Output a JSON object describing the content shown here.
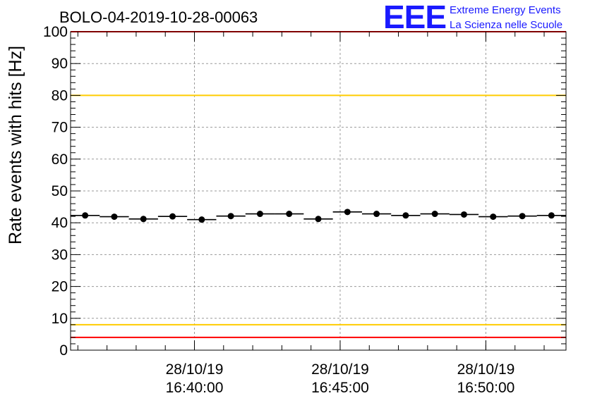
{
  "chart_data": {
    "type": "scatter",
    "title": "BOLO-04-2019-10-28-00063",
    "xlabel": "",
    "ylabel": "Rate events with hits [Hz]",
    "ylim": [
      0,
      100
    ],
    "yticks": [
      0,
      10,
      20,
      30,
      40,
      50,
      60,
      70,
      80,
      90,
      100
    ],
    "xlim_minutes": [
      0,
      17
    ],
    "x_tick_labels": [
      {
        "date": "28/10/19",
        "time": "16:40:00",
        "minute": 4.25
      },
      {
        "date": "28/10/19",
        "time": "16:45:00",
        "minute": 9.25
      },
      {
        "date": "28/10/19",
        "time": "16:50:00",
        "minute": 14.25
      }
    ],
    "series": [
      {
        "name": "rate",
        "x_minutes": [
          0.5,
          1.5,
          2.5,
          3.5,
          4.5,
          5.5,
          6.5,
          7.5,
          8.5,
          9.5,
          10.5,
          11.5,
          12.5,
          13.5,
          14.5,
          15.5,
          16.5
        ],
        "values": [
          42.3,
          41.9,
          41.2,
          42.0,
          41.0,
          42.1,
          42.8,
          42.8,
          41.2,
          43.4,
          42.8,
          42.3,
          42.8,
          42.6,
          41.9,
          42.1,
          42.3
        ]
      }
    ],
    "threshold_lines": [
      {
        "name": "upper-red",
        "value": 100,
        "color": "#ff0000"
      },
      {
        "name": "upper-yellow",
        "value": 80,
        "color": "#ffcc00"
      },
      {
        "name": "lower-yellow",
        "value": 8,
        "color": "#ffcc00"
      },
      {
        "name": "lower-red",
        "value": 4,
        "color": "#ff0000"
      }
    ],
    "grid": true
  },
  "logo": {
    "mark": "EEE",
    "line1": "Extreme Energy Events",
    "line2": "La Scienza nelle Scuole",
    "color": "#1a1aff"
  }
}
